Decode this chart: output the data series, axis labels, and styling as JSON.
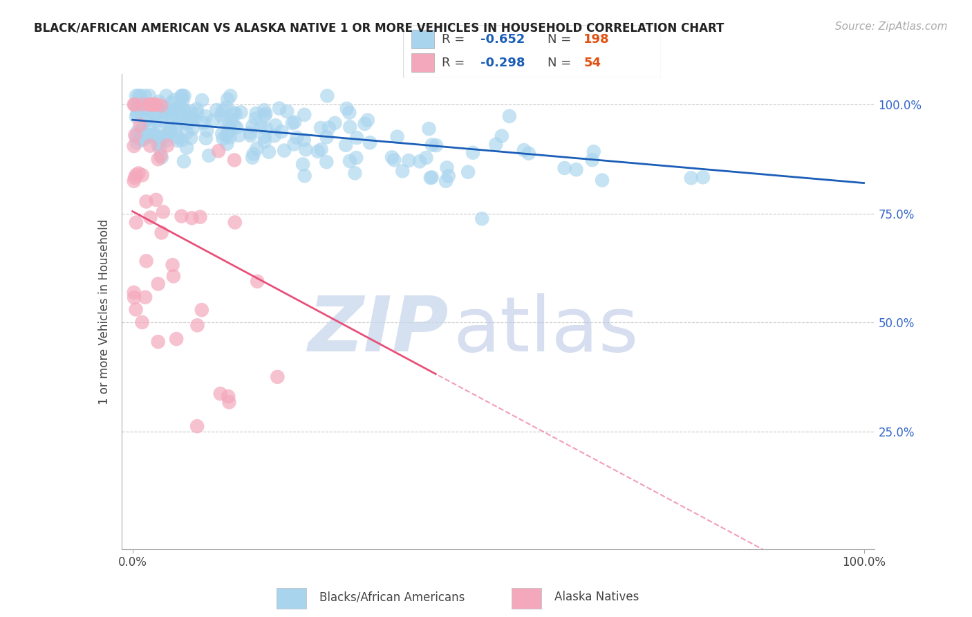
{
  "title": "BLACK/AFRICAN AMERICAN VS ALASKA NATIVE 1 OR MORE VEHICLES IN HOUSEHOLD CORRELATION CHART",
  "source_text": "Source: ZipAtlas.com",
  "ylabel": "1 or more Vehicles in Household",
  "xlim": [
    0.0,
    1.0
  ],
  "ylim": [
    0.0,
    1.05
  ],
  "blue_R": -0.652,
  "blue_N": 198,
  "pink_R": -0.298,
  "pink_N": 54,
  "blue_dot_color": "#A8D4EE",
  "blue_line_color": "#1B5EB8",
  "pink_dot_color": "#F4A8BC",
  "pink_line_color": "#E8507A",
  "watermark_zip_color": "#C8D8EC",
  "watermark_atlas_color": "#C0CDE8",
  "legend_label_blue": "Blacks/African Americans",
  "legend_label_pink": "Alaska Natives",
  "title_fontsize": 12,
  "source_fontsize": 11,
  "tick_fontsize": 12,
  "ylabel_fontsize": 12
}
